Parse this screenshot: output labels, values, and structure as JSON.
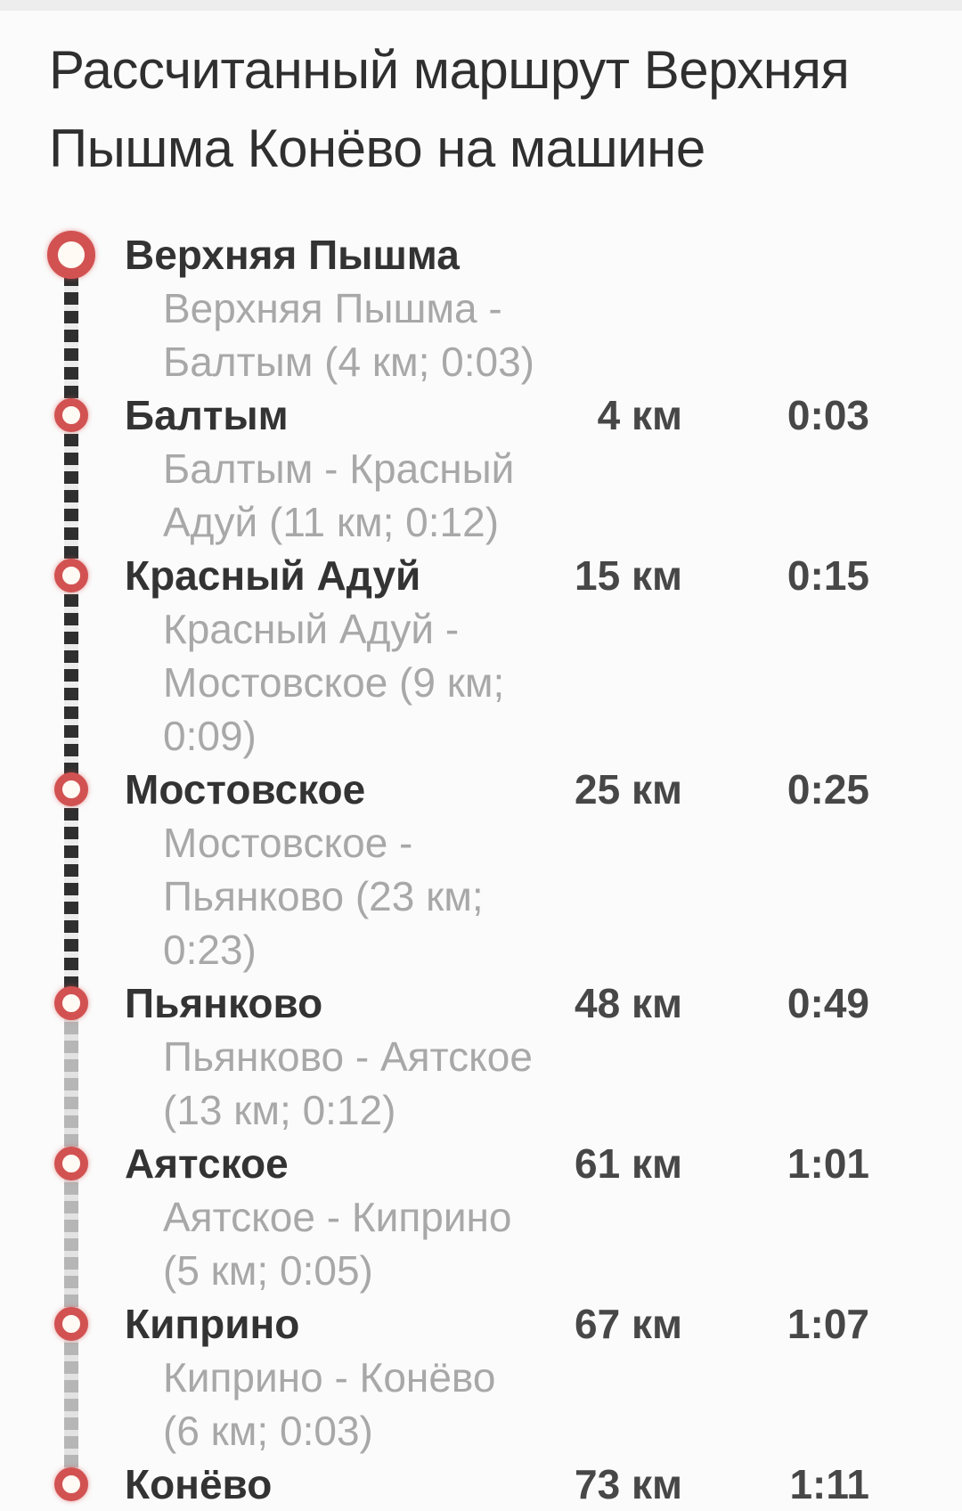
{
  "page": {
    "title": "Рассчитанный маршрут Верхняя Пышма Конёво на машине"
  },
  "colors": {
    "background": "#fbfbfb",
    "top_strip": "#ededed",
    "title_text": "#2f2f2f",
    "stop_name_text": "#333333",
    "segment_text": "#a8a8a8",
    "value_text": "#474747",
    "marker_ring": "#d25252",
    "rail_dark": "#2f2f2f",
    "rail_gray": "#b6b6b6"
  },
  "route": {
    "stops": [
      {
        "name": "Верхняя Пышма",
        "distance": "",
        "time": "",
        "segment_lines": [
          "Верхняя Пышма -",
          "Балтым (4 км; 0:03)"
        ],
        "rail": "dark"
      },
      {
        "name": "Балтым",
        "distance": "4 км",
        "time": "0:03",
        "segment_lines": [
          "Балтым - Красный",
          "Адуй (11 км; 0:12)"
        ],
        "rail": "dark"
      },
      {
        "name": "Красный Адуй",
        "distance": "15 км",
        "time": "0:15",
        "segment_lines": [
          "Красный Адуй -",
          "Мостовское (9 км;",
          "0:09)"
        ],
        "rail": "dark"
      },
      {
        "name": "Мостовское",
        "distance": "25 км",
        "time": "0:25",
        "segment_lines": [
          "Мостовское -",
          "Пьянково (23 км;",
          "0:23)"
        ],
        "rail": "dark"
      },
      {
        "name": "Пьянково",
        "distance": "48 км",
        "time": "0:49",
        "segment_lines": [
          "Пьянково - Аятское",
          "(13 км; 0:12)"
        ],
        "rail": "gray"
      },
      {
        "name": "Аятское",
        "distance": "61 км",
        "time": "1:01",
        "segment_lines": [
          "Аятское - Киприно",
          "(5 км; 0:05)"
        ],
        "rail": "gray"
      },
      {
        "name": "Киприно",
        "distance": "67 км",
        "time": "1:07",
        "segment_lines": [
          "Киприно - Конёво",
          "(6 км; 0:03)"
        ],
        "rail": "gray"
      },
      {
        "name": "Конёво",
        "distance": "73 км",
        "time": "1:11",
        "segment_lines": null,
        "rail": null
      }
    ]
  }
}
